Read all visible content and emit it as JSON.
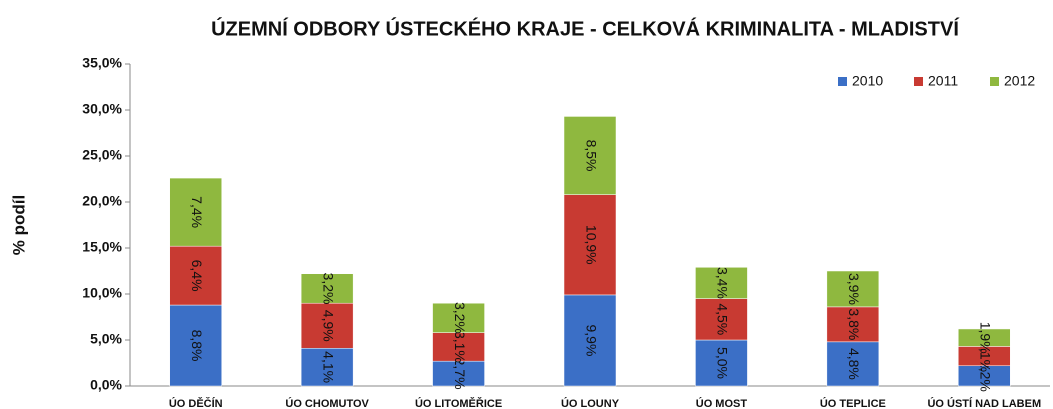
{
  "chart_data": {
    "type": "stacked_bar",
    "title": "ÚZEMNÍ ODBORY ÚSTECKÉHO KRAJE - CELKOVÁ KRIMINALITA - MLADISTVÍ",
    "y_label": "% podíl",
    "categories": [
      "ÚO DĚČÍN",
      "ÚO CHOMUTOV",
      "ÚO LITOMĚŘICE",
      "ÚO LOUNY",
      "ÚO MOST",
      "ÚO TEPLICE",
      "ÚO ÚSTÍ NAD LABEM"
    ],
    "series": [
      {
        "name": "2010",
        "color": "#3b6fc6",
        "values": [
          8.8,
          4.1,
          2.7,
          9.9,
          5.0,
          4.8,
          2.2
        ],
        "value_labels": [
          "8,8%",
          "4,1%",
          "2,7%",
          "9,9%",
          "5,0%",
          "4,8%",
          "2,2%"
        ]
      },
      {
        "name": "2011",
        "color": "#c83a32",
        "values": [
          6.4,
          4.9,
          3.1,
          10.9,
          4.5,
          3.8,
          2.1
        ],
        "value_labels": [
          "6,4%",
          "4,9%",
          "3,1%",
          "10,9%",
          "4,5%",
          "3,8%",
          "2,1%"
        ]
      },
      {
        "name": "2012",
        "color": "#8fb83f",
        "values": [
          7.4,
          3.2,
          3.2,
          8.5,
          3.4,
          3.9,
          1.9
        ],
        "value_labels": [
          "7,4%",
          "3,2%",
          "3,2%",
          "8,5%",
          "3,4%",
          "3,9%",
          "1,9%"
        ]
      }
    ],
    "ylim": [
      0,
      35
    ],
    "yticks": [
      {
        "value": 0,
        "label": "0,0%"
      },
      {
        "value": 5,
        "label": "5,0%"
      },
      {
        "value": 10,
        "label": "10,0%"
      },
      {
        "value": 15,
        "label": "15,0%"
      },
      {
        "value": 20,
        "label": "20,0%"
      },
      {
        "value": 25,
        "label": "25,0%"
      },
      {
        "value": 30,
        "label": "30,0%"
      },
      {
        "value": 35,
        "label": "35,0%"
      }
    ],
    "legend": "top-right"
  }
}
